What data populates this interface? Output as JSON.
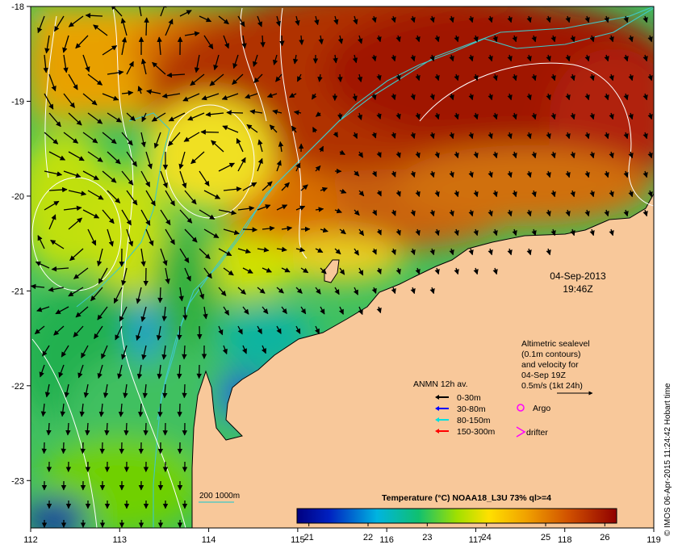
{
  "map": {
    "lon_range": [
      112,
      119
    ],
    "lat_range": [
      -23.5,
      -18
    ],
    "x_ticks": [
      "112",
      "113",
      "114",
      "115",
      "116",
      "117",
      "118",
      "119"
    ],
    "y_ticks": [
      "-18",
      "-19",
      "-20",
      "-21",
      "-22",
      "-23"
    ],
    "colors": {
      "land": "#f8c89a",
      "warm": "#a01505",
      "cool": "#2f5fd0",
      "contour": "#ffffff",
      "isobath": "#40c8c8"
    }
  },
  "date_stamp": {
    "date": "04-Sep-2013",
    "time": "19:46Z"
  },
  "altimetric_note": {
    "lines": [
      "Altimetric sealevel",
      "(0.1m contours)",
      "and velocity for",
      "04-Sep 19Z",
      "0.5m/s (1kt 24h)"
    ]
  },
  "anmn_legend": {
    "title": "ANMN 12h av.",
    "items": [
      {
        "label": "0-30m",
        "color": "#000000"
      },
      {
        "label": "30-80m",
        "color": "#0000ff"
      },
      {
        "label": "80-150m",
        "color": "#00e0e0"
      },
      {
        "label": "150-300m",
        "color": "#ff0000"
      }
    ]
  },
  "argo_legend": {
    "label": "Argo",
    "color": "#ff00ff"
  },
  "drifter_legend": {
    "label": "drifter",
    "color": "#ff00ff"
  },
  "isobath_legend": {
    "label": "200  1000m"
  },
  "colorbar": {
    "title": "Temperature (°C) NOAA18_L3U 73% ql>=4",
    "ticks": [
      "21",
      "22",
      "23",
      "24",
      "25",
      "26"
    ],
    "range": [
      20.8,
      26.2
    ]
  },
  "credit": "© IMOS 06-Apr-2015 11:24:42 Hobart time"
}
